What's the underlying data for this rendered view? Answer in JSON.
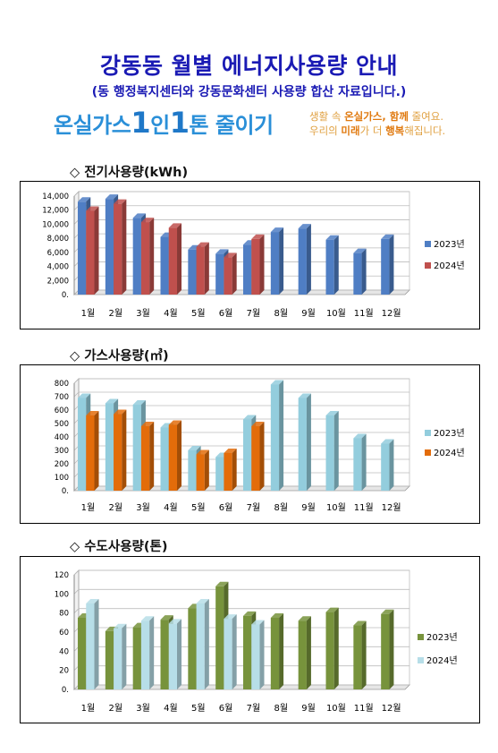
{
  "header": {
    "title": "강동동 월별 에너지사용량 안내",
    "subtitle": "(동 행정복지센터와 강동문화센터 사용량 합산 자료입니다.)"
  },
  "slogan": {
    "part1": "온실가스",
    "num1": "1",
    "part2": "인",
    "num2": "1",
    "part3": "톤 줄이기",
    "side_line1_a": "생활 속 ",
    "side_line1_b": "온실가스, 함께",
    "side_line1_c": " 줄여요.",
    "side_line2_a": "우리의 ",
    "side_line2_b": "미래",
    "side_line2_c": "가 더 ",
    "side_line2_d": "행복",
    "side_line2_e": "해집니다."
  },
  "sections": {
    "electric": "◇ 전기사용량(kWh)",
    "gas": "◇ 가스사용량(㎥)",
    "water": "◇ 수도사용량(톤)"
  },
  "chart_data": [
    {
      "type": "bar",
      "id": "electric",
      "categories": [
        "1월",
        "2월",
        "3월",
        "4월",
        "5월",
        "6월",
        "7월",
        "8월",
        "9월",
        "10월",
        "11월",
        "12월"
      ],
      "ylim": [
        0,
        14000
      ],
      "yticks": [
        "0",
        "2,000",
        "4,000",
        "6,000",
        "8,000",
        "10,000",
        "12,000",
        "14,000"
      ],
      "series": [
        {
          "name": "2023년",
          "color": "#4f7ec4",
          "values": [
            13200,
            13600,
            10900,
            8200,
            6400,
            5800,
            7100,
            8900,
            9400,
            7800,
            5900,
            7900
          ]
        },
        {
          "name": "2024년",
          "color": "#c0504d",
          "values": [
            11900,
            12900,
            10300,
            9500,
            6800,
            5300,
            7900,
            null,
            null,
            null,
            null,
            null
          ]
        }
      ],
      "legend": "right"
    },
    {
      "type": "bar",
      "id": "gas",
      "categories": [
        "1월",
        "2월",
        "3월",
        "4월",
        "5월",
        "6월",
        "7월",
        "8월",
        "9월",
        "10월",
        "11월",
        "12월"
      ],
      "ylim": [
        0,
        800
      ],
      "yticks": [
        "0",
        "100",
        "200",
        "300",
        "400",
        "500",
        "600",
        "700",
        "800"
      ],
      "series": [
        {
          "name": "2023년",
          "color": "#93cddd",
          "values": [
            690,
            650,
            640,
            470,
            300,
            250,
            530,
            790,
            690,
            560,
            390,
            350
          ]
        },
        {
          "name": "2024년",
          "color": "#e36c0a",
          "values": [
            560,
            570,
            480,
            490,
            270,
            280,
            480,
            null,
            null,
            null,
            null,
            null
          ]
        }
      ],
      "legend": "right"
    },
    {
      "type": "bar",
      "id": "water",
      "categories": [
        "1월",
        "2월",
        "3월",
        "4월",
        "5월",
        "6월",
        "7월",
        "8월",
        "9월",
        "10월",
        "11월",
        "12월"
      ],
      "ylim": [
        0,
        120
      ],
      "yticks": [
        "0",
        "20",
        "40",
        "60",
        "80",
        "100",
        "120"
      ],
      "series": [
        {
          "name": "2023년",
          "color": "#77933c",
          "values": [
            75,
            61,
            65,
            73,
            85,
            108,
            77,
            75,
            72,
            81,
            67,
            79
          ]
        },
        {
          "name": "2024년",
          "color": "#b7dee8",
          "values": [
            90,
            64,
            72,
            69,
            90,
            74,
            68,
            null,
            null,
            null,
            null,
            null
          ]
        }
      ],
      "legend": "right"
    }
  ]
}
